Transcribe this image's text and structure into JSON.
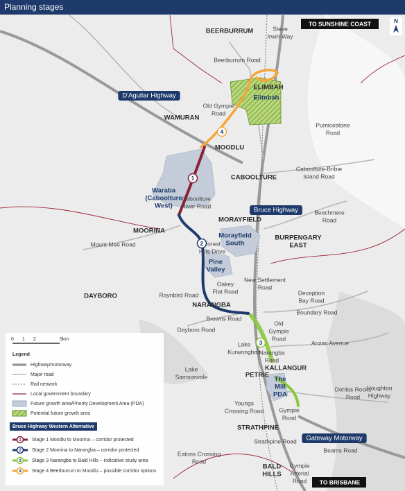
{
  "header": {
    "title": "Planning stages"
  },
  "badges": {
    "north": "N",
    "sunshine_coast": "TO SUNSHINE COAST",
    "brisbane": "TO BRISBANE"
  },
  "suburbs": [
    "BEERBURRUM",
    "ELIMBAH",
    "WAMURAN",
    "MOODLU",
    "CABOOLTURE",
    "MORAYFIELD",
    "MOORINA",
    [
      "BURPENGARY",
      "EAST"
    ],
    "DAYBORO",
    "NARANGBA",
    "KALLANGUR",
    "PETRIE",
    "STRATHPINE",
    [
      "BALD",
      "HILLS"
    ]
  ],
  "roads": [
    [
      "Steve",
      "Irwin Way"
    ],
    "Beerburrum Road",
    [
      "Old Gympie",
      "Road"
    ],
    [
      "Pumicestone",
      "Road"
    ],
    [
      "Caboolture-Bribie",
      "Island Road"
    ],
    [
      "Caboolture",
      "River Road"
    ],
    [
      "Beachmere",
      "Road"
    ],
    "Mount Mee Road",
    [
      "Forest",
      "Hills Drive"
    ],
    [
      "Oakey",
      "Flat Road"
    ],
    [
      "New Settlement",
      "Road"
    ],
    [
      "Deception",
      "Bay Road"
    ],
    "Raynbird Road",
    "Boundary Road",
    "Browns Road",
    [
      "Old",
      "Gympie",
      "Road"
    ],
    "Dayboro Road",
    "Anzac Avenue",
    [
      "Lake",
      "Kurwongbah"
    ],
    [
      "Narangba",
      "Road"
    ],
    [
      "Lake",
      "Samsonvale"
    ],
    [
      "Dohles Rocks",
      "Road"
    ],
    [
      "Houghton",
      "Highway"
    ],
    [
      "Youngs",
      "Crossing Road"
    ],
    [
      "Gympie",
      "Road"
    ],
    "Beams Road",
    "Strathpine Road",
    [
      "Eatons Crossing",
      "Road"
    ],
    [
      "Gympie",
      "Arterial",
      "Road"
    ]
  ],
  "highways": [
    "D'Aguilar Highway",
    "Bruce Highway",
    "Gateway Motorway"
  ],
  "areas": [
    "Elimbah",
    [
      "Waraba",
      "(Caboolture",
      "West)"
    ],
    [
      "Morayfield",
      "South"
    ],
    [
      "Pine",
      "Valley"
    ],
    [
      "The",
      "Mill",
      "PDA"
    ]
  ],
  "stage_markers": [
    "1",
    "2",
    "3",
    "4"
  ],
  "scale": [
    "0",
    "1",
    "2",
    "5km"
  ],
  "legend": {
    "title": "Legend",
    "items": [
      "Highway/motorway",
      "Major road",
      "Rail network",
      "Local government boundary",
      "Future growth area/Priority Development Area (PDA)",
      "Potential future growth area"
    ]
  },
  "alternative": {
    "title": "Bruce Highway Western Alternative",
    "items": [
      {
        "number": "1",
        "text": "Stage 1 Moodlu to Moorina – corridor protected"
      },
      {
        "number": "2",
        "text": "Stage 2 Moorina to Narangba – corridor protected"
      },
      {
        "number": "3",
        "text": "Stage 3 Narangba to Bald Hills – indicative study area"
      },
      {
        "number": "4",
        "text": "Stage 4 Beerburrum to Moodlu – possible corridor options"
      }
    ]
  }
}
